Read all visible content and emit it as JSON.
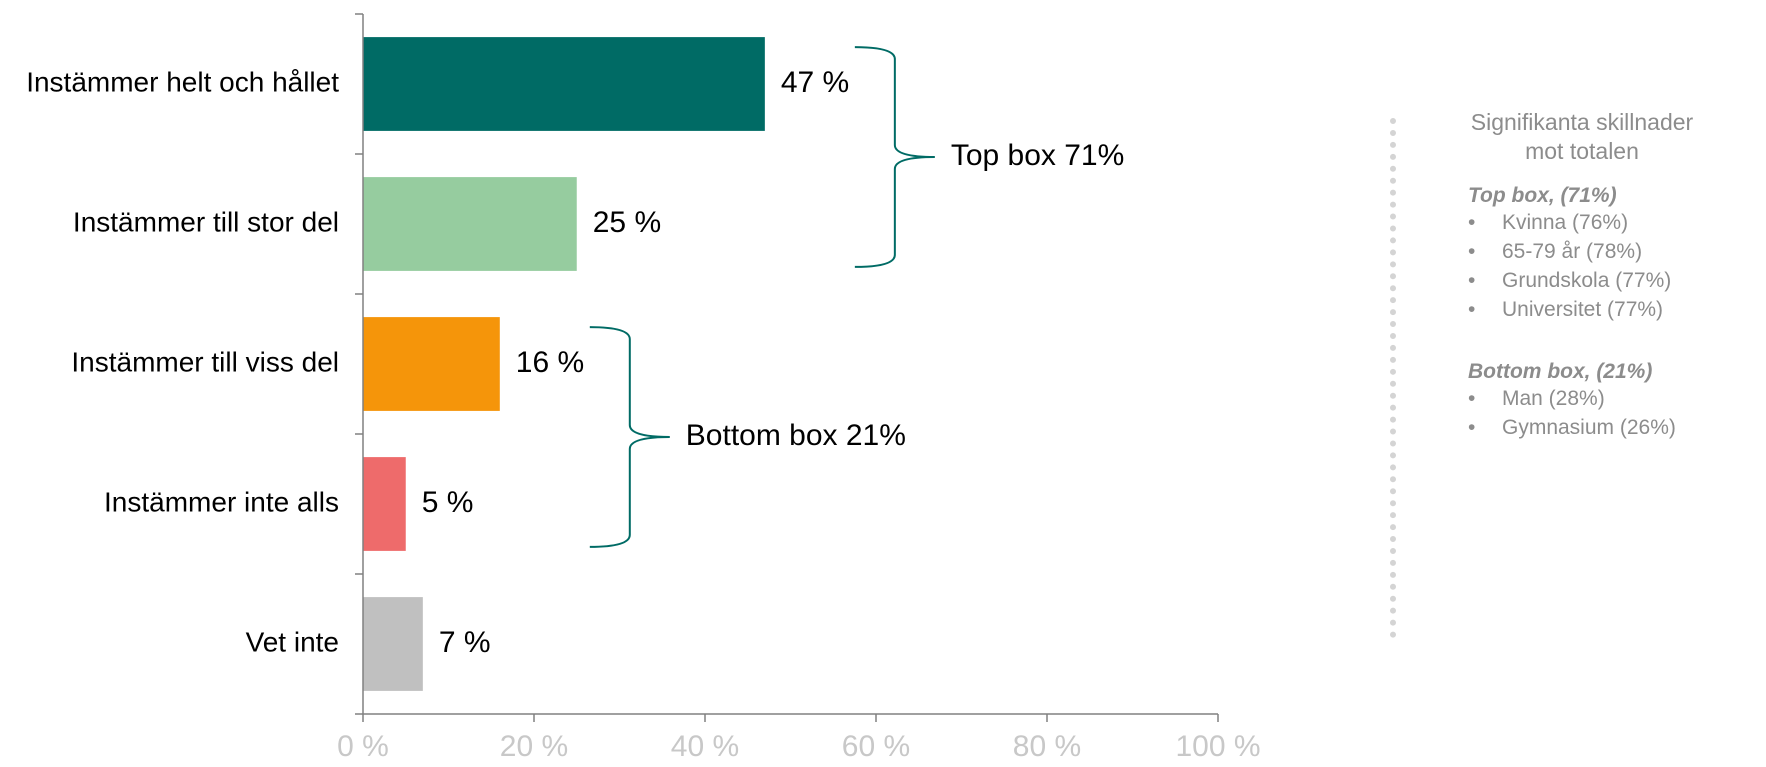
{
  "chart_data": {
    "type": "bar",
    "orientation": "horizontal",
    "categories": [
      "Instämmer helt och hållet",
      "Instämmer till stor del",
      "Instämmer till viss del",
      "Instämmer inte alls",
      "Vet inte"
    ],
    "values": [
      47,
      25,
      16,
      5,
      7
    ],
    "value_labels": [
      "47 %",
      "25 %",
      "16 %",
      "5 %",
      "7 %"
    ],
    "colors": [
      "#006b65",
      "#96cc9f",
      "#f5950a",
      "#ee6b6b",
      "#c0c0c0"
    ],
    "xlim": [
      0,
      100
    ],
    "xticks": [
      0,
      20,
      40,
      60,
      80,
      100
    ],
    "xtick_labels": [
      "0 %",
      "20 %",
      "40 %",
      "60 %",
      "80 %",
      "100 %"
    ],
    "title": "",
    "xlabel": "",
    "ylabel": "",
    "grid": false,
    "annotations": [
      {
        "label": "Top box 71%",
        "from_category": 0,
        "to_category": 1,
        "color": "#006b65"
      },
      {
        "label": "Bottom box 21%",
        "from_category": 2,
        "to_category": 3,
        "color": "#006b65"
      }
    ]
  },
  "side_panel": {
    "title": "Signifikanta skillnader mot totalen",
    "groups": [
      {
        "heading": "Top box, (71%)",
        "items": [
          "Kvinna (76%)",
          "65-79 år (78%)",
          "Grundskola (77%)",
          "Universitet (77%)"
        ]
      },
      {
        "heading": "Bottom box, (21%)",
        "items": [
          "Man (28%)",
          "Gymnasium (26%)"
        ]
      }
    ]
  }
}
